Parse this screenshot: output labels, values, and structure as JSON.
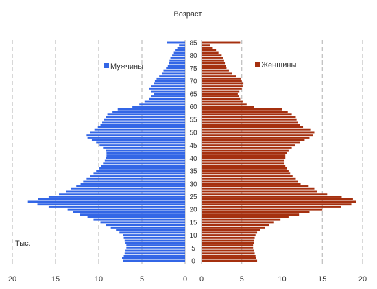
{
  "chart_data": {
    "type": "bar",
    "title": "Возраст",
    "unit_label": "Тыс.",
    "age_tick_labels": [
      "0",
      "5",
      "10",
      "15",
      "20",
      "25",
      "30",
      "35",
      "40",
      "45",
      "50",
      "55",
      "60",
      "65",
      "70",
      "75",
      "80",
      "85"
    ],
    "x_tick_labels_left": [
      "20",
      "15",
      "10",
      "5",
      "0"
    ],
    "x_tick_labels_right": [
      "0",
      "5",
      "10",
      "15",
      "20"
    ],
    "xlim": [
      0,
      20
    ],
    "grid": true,
    "legend_placement": "inside",
    "ages": [
      0,
      1,
      2,
      3,
      4,
      5,
      6,
      7,
      8,
      9,
      10,
      11,
      12,
      13,
      14,
      15,
      16,
      17,
      18,
      19,
      20,
      21,
      22,
      23,
      24,
      25,
      26,
      27,
      28,
      29,
      30,
      31,
      32,
      33,
      34,
      35,
      36,
      37,
      38,
      39,
      40,
      41,
      42,
      43,
      44,
      45,
      46,
      47,
      48,
      49,
      50,
      51,
      52,
      53,
      54,
      55,
      56,
      57,
      58,
      59,
      60,
      61,
      62,
      63,
      64,
      65,
      66,
      67,
      68,
      69,
      70,
      71,
      72,
      73,
      74,
      75,
      76,
      77,
      78,
      79,
      80,
      81,
      82,
      83,
      84,
      85
    ],
    "series": [
      {
        "name": "Мужчины",
        "color": "#3366e6",
        "values": [
          7.2,
          7.3,
          7.1,
          7.0,
          6.9,
          6.8,
          6.8,
          6.9,
          7.0,
          7.1,
          7.2,
          7.6,
          8.0,
          8.6,
          9.2,
          9.8,
          10.6,
          11.3,
          12.2,
          13.0,
          13.6,
          15.8,
          17.1,
          18.2,
          17.0,
          15.8,
          14.6,
          13.8,
          13.2,
          12.6,
          12.1,
          11.8,
          11.4,
          11.0,
          10.6,
          10.3,
          10.0,
          9.7,
          9.5,
          9.3,
          9.2,
          9.1,
          9.1,
          9.2,
          9.5,
          9.9,
          10.3,
          10.8,
          11.3,
          11.4,
          11.0,
          10.5,
          10.1,
          9.8,
          9.6,
          9.4,
          9.2,
          9.0,
          8.4,
          7.8,
          6.1,
          5.3,
          4.7,
          4.2,
          3.9,
          3.6,
          3.9,
          4.2,
          3.9,
          3.6,
          3.5,
          3.3,
          3.0,
          2.7,
          2.5,
          2.2,
          2.0,
          1.9,
          1.8,
          1.7,
          1.5,
          1.3,
          1.1,
          0.9,
          0.7,
          2.1
        ]
      },
      {
        "name": "Женщины",
        "color": "#a5300f",
        "values": [
          6.9,
          6.8,
          6.7,
          6.6,
          6.5,
          6.4,
          6.4,
          6.5,
          6.5,
          6.6,
          6.7,
          6.9,
          7.3,
          7.9,
          8.4,
          9.0,
          9.8,
          10.8,
          12.1,
          13.4,
          15.0,
          17.3,
          18.6,
          19.2,
          18.8,
          17.4,
          15.6,
          14.3,
          14.0,
          13.3,
          12.3,
          12.0,
          11.7,
          11.3,
          11.0,
          10.8,
          10.6,
          10.4,
          10.3,
          10.3,
          10.4,
          10.4,
          10.6,
          10.8,
          11.2,
          11.6,
          12.2,
          12.8,
          13.4,
          13.8,
          14.0,
          13.5,
          12.6,
          12.2,
          12.0,
          11.8,
          11.7,
          11.2,
          10.7,
          10.0,
          6.5,
          5.6,
          5.1,
          4.8,
          4.6,
          4.5,
          4.7,
          5.0,
          5.1,
          5.2,
          5.0,
          4.9,
          4.3,
          3.8,
          3.4,
          3.1,
          3.0,
          2.9,
          2.8,
          2.7,
          2.5,
          2.1,
          1.8,
          1.4,
          1.1,
          4.8
        ]
      }
    ]
  }
}
